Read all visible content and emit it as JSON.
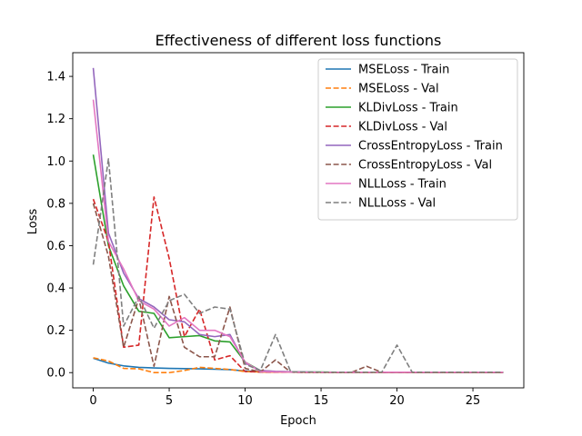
{
  "chart_data": {
    "type": "line",
    "title": "Effectiveness of different loss functions",
    "xlabel": "Epoch",
    "ylabel": "Loss",
    "xlim": [
      -1.35,
      28.35
    ],
    "ylim": [
      -0.072,
      1.512
    ],
    "xticks": [
      0,
      5,
      10,
      15,
      20,
      25
    ],
    "yticks": [
      0.0,
      0.2,
      0.4,
      0.6,
      0.8,
      1.0,
      1.2,
      1.4
    ],
    "ytick_labels": [
      "0.0",
      "0.2",
      "0.4",
      "0.6",
      "0.8",
      "1.0",
      "1.2",
      "1.4"
    ],
    "grid": false,
    "legend_position": "top-right",
    "x": [
      0,
      1,
      2,
      3,
      4,
      5,
      6,
      7,
      8,
      9,
      10,
      11,
      12,
      13,
      14,
      15,
      16,
      17,
      18,
      19,
      20,
      21,
      22,
      23,
      24,
      25,
      26,
      27
    ],
    "series": [
      {
        "name": "MSELoss - Train",
        "color": "#1f77b4",
        "style": "solid",
        "values": [
          0.068,
          0.045,
          0.032,
          0.025,
          0.022,
          0.02,
          0.019,
          0.018,
          0.016,
          0.014,
          0.008,
          0.004,
          0.003,
          0.002,
          0.002,
          0.002,
          0.001,
          0.001,
          0.001,
          0.001,
          0.001,
          0.001,
          0.001,
          0.001,
          0.001,
          0.001,
          0.001,
          0.001
        ]
      },
      {
        "name": "MSELoss - Val",
        "color": "#ff7f0e",
        "style": "dashed",
        "values": [
          0.07,
          0.055,
          0.02,
          0.018,
          0.0,
          0.0,
          0.01,
          0.025,
          0.02,
          0.015,
          0.005,
          0.003,
          0.002,
          0.002,
          0.001,
          0.001,
          0.001,
          0.001,
          0.001,
          0.001,
          0.001,
          0.001,
          0.001,
          0.001,
          0.001,
          0.001,
          0.001,
          0.001
        ]
      },
      {
        "name": "KLDivLoss - Train",
        "color": "#2ca02c",
        "style": "solid",
        "values": [
          1.03,
          0.6,
          0.41,
          0.29,
          0.28,
          0.165,
          0.17,
          0.175,
          0.15,
          0.145,
          0.05,
          0.01,
          0.005,
          0.004,
          0.003,
          0.003,
          0.002,
          0.002,
          0.002,
          0.002,
          0.002,
          0.002,
          0.002,
          0.002,
          0.002,
          0.002,
          0.002,
          0.002
        ]
      },
      {
        "name": "KLDivLoss - Val",
        "color": "#d62728",
        "style": "dashed",
        "values": [
          0.82,
          0.62,
          0.12,
          0.13,
          0.83,
          0.54,
          0.17,
          0.3,
          0.06,
          0.08,
          0.005,
          0.003,
          0.002,
          0.002,
          0.001,
          0.001,
          0.001,
          0.001,
          0.001,
          0.001,
          0.001,
          0.001,
          0.001,
          0.001,
          0.001,
          0.001,
          0.001,
          0.001
        ]
      },
      {
        "name": "CrossEntropyLoss - Train",
        "color": "#9467bd",
        "style": "solid",
        "values": [
          1.44,
          0.66,
          0.47,
          0.35,
          0.31,
          0.25,
          0.24,
          0.18,
          0.17,
          0.18,
          0.045,
          0.01,
          0.006,
          0.004,
          0.003,
          0.002,
          0.002,
          0.002,
          0.002,
          0.002,
          0.002,
          0.002,
          0.002,
          0.002,
          0.002,
          0.002,
          0.002,
          0.002
        ]
      },
      {
        "name": "CrossEntropyLoss - Val",
        "color": "#8c564b",
        "style": "dashed",
        "values": [
          0.8,
          0.55,
          0.12,
          0.35,
          0.03,
          0.36,
          0.12,
          0.075,
          0.075,
          0.31,
          0.02,
          0.003,
          0.06,
          0.002,
          0.001,
          0.001,
          0.001,
          0.001,
          0.03,
          0.001,
          0.001,
          0.001,
          0.001,
          0.001,
          0.001,
          0.001,
          0.001,
          0.001
        ]
      },
      {
        "name": "NLLLoss - Train",
        "color": "#e377c2",
        "style": "solid",
        "values": [
          1.29,
          0.62,
          0.49,
          0.34,
          0.3,
          0.22,
          0.26,
          0.2,
          0.2,
          0.17,
          0.05,
          0.005,
          0.004,
          0.003,
          0.002,
          0.002,
          0.002,
          0.002,
          0.002,
          0.002,
          0.002,
          0.002,
          0.002,
          0.002,
          0.002,
          0.002,
          0.002,
          0.002
        ]
      },
      {
        "name": "NLLLoss - Val",
        "color": "#7f7f7f",
        "style": "dashed",
        "values": [
          0.51,
          1.01,
          0.22,
          0.36,
          0.21,
          0.34,
          0.37,
          0.28,
          0.31,
          0.3,
          0.04,
          0.01,
          0.18,
          0.004,
          0.003,
          0.002,
          0.002,
          0.002,
          0.002,
          0.002,
          0.13,
          0.002,
          0.002,
          0.002,
          0.002,
          0.002,
          0.002,
          0.002
        ]
      }
    ]
  }
}
